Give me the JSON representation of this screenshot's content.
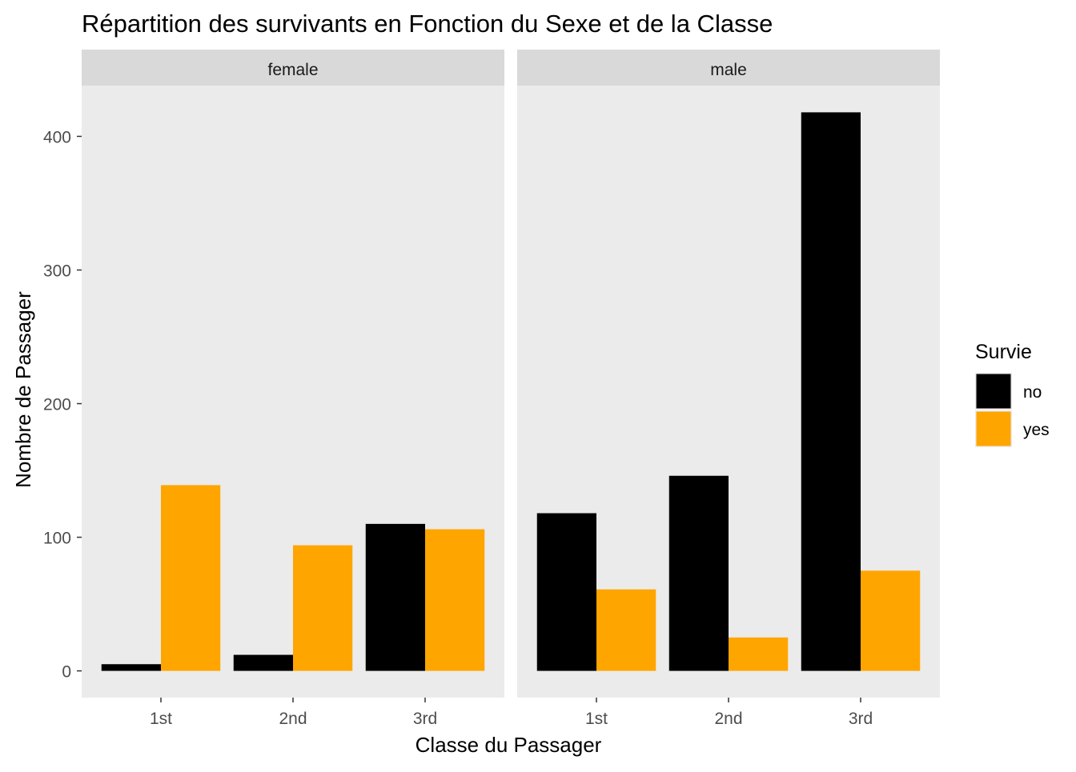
{
  "chart_data": {
    "type": "bar",
    "title": "Répartition des survivants en Fonction du Sexe et de la Classe",
    "xlabel": "Classe du Passager",
    "ylabel": "Nombre de Passager",
    "categories": [
      "1st",
      "2nd",
      "3rd"
    ],
    "y_ticks": [
      0,
      100,
      200,
      300,
      400
    ],
    "ylim": [
      -20,
      438
    ],
    "grid": false,
    "legend": {
      "title": "Survie",
      "placement": "right",
      "entries": [
        {
          "label": "no",
          "color": "#000000"
        },
        {
          "label": "yes",
          "color": "#FFA500"
        }
      ]
    },
    "panels": [
      {
        "facet": "female",
        "series": [
          {
            "name": "no",
            "values": [
              5,
              12,
              110
            ]
          },
          {
            "name": "yes",
            "values": [
              139,
              94,
              106
            ]
          }
        ]
      },
      {
        "facet": "male",
        "series": [
          {
            "name": "no",
            "values": [
              118,
              146,
              418
            ]
          },
          {
            "name": "yes",
            "values": [
              61,
              25,
              75
            ]
          }
        ]
      }
    ],
    "colors": {
      "panel_background": "#EBEBEB",
      "strip_background": "#D9D9D9",
      "tick_text": "#4D4D4D"
    }
  }
}
